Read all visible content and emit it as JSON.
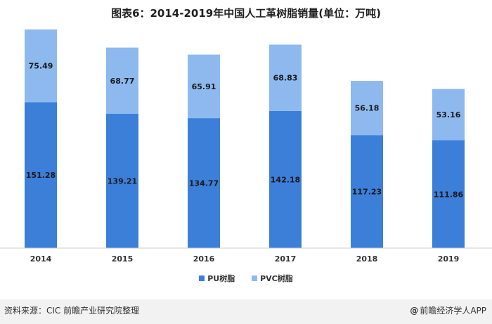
{
  "title": "图表6：2014-2019年中国人工革树脂销量(单位：万吨)",
  "chart_data": {
    "type": "bar",
    "stacked": true,
    "categories": [
      "2014",
      "2015",
      "2016",
      "2017",
      "2018",
      "2019"
    ],
    "series": [
      {
        "name": "PU树脂",
        "values": [
          151.28,
          139.21,
          134.77,
          142.18,
          117.23,
          111.86
        ],
        "color": "#3b7fd9"
      },
      {
        "name": "PVC树脂",
        "values": [
          75.49,
          68.77,
          65.91,
          68.83,
          56.18,
          53.16
        ],
        "color": "#8db9ef"
      }
    ],
    "ylim": [
      0,
      250
    ],
    "grid": false,
    "legend": "bottom-center"
  },
  "footer": {
    "source": "资料来源：CIC 前瞻产业研究院整理",
    "brand": "前瞻经济学人APP",
    "brand_icon": "at-icon"
  }
}
